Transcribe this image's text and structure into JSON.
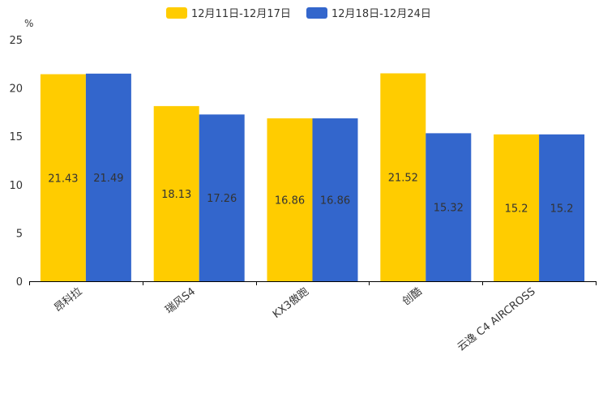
{
  "chart_data": {
    "type": "bar",
    "unit": "%",
    "categories": [
      "昂科拉",
      "瑞风S4",
      "KX3傲跑",
      "创酷",
      "云逸 C4 AIRCROSS"
    ],
    "series": [
      {
        "name": "12月11日-12月17日",
        "color": "#FFCC00",
        "values": [
          21.43,
          18.13,
          16.86,
          21.52,
          15.2
        ]
      },
      {
        "name": "12月18日-12月24日",
        "color": "#3366CC",
        "values": [
          21.49,
          17.26,
          16.86,
          15.32,
          15.2
        ]
      }
    ],
    "value_labels": [
      [
        "21.43",
        "18.13",
        "16.86",
        "21.52",
        "15.2"
      ],
      [
        "21.49",
        "17.26",
        "16.86",
        "15.32",
        "15.2"
      ]
    ],
    "ylim": [
      0,
      25
    ],
    "yticks": [
      "0",
      "5",
      "10",
      "15",
      "20",
      "25"
    ],
    "legend_position": "top-center",
    "grid": false
  }
}
